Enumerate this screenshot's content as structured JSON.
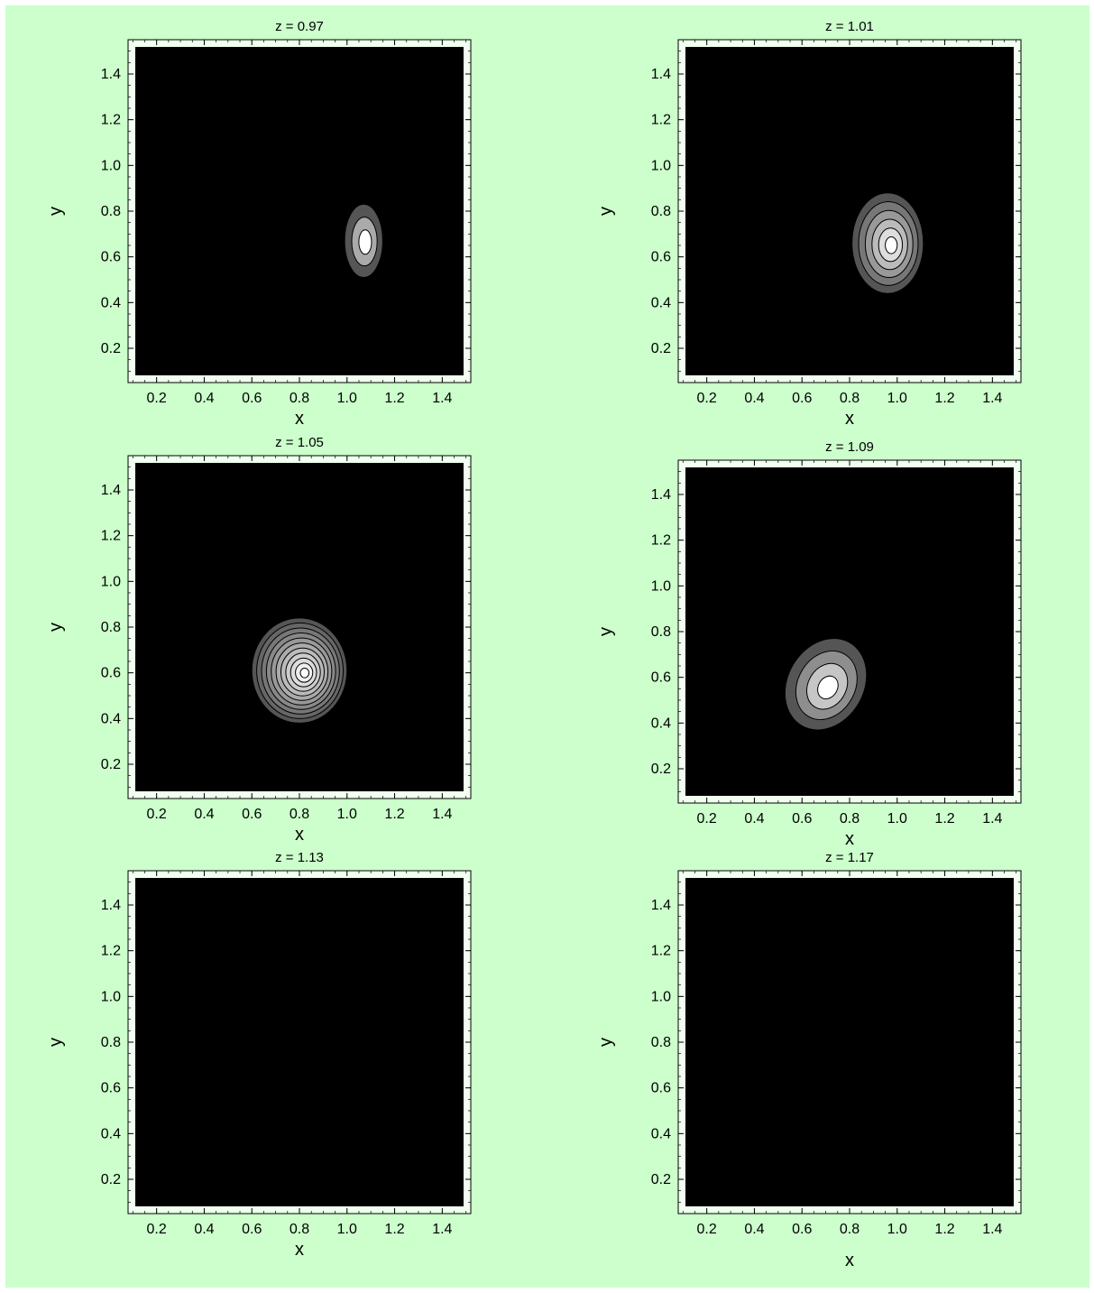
{
  "figure": {
    "background": "#ccffcc",
    "plot_background": "#000000",
    "frame_color": "#f0fff0"
  },
  "chart_data": [
    {
      "type": "heatmap",
      "subtype": "contour",
      "title": "z = 0.97",
      "xlabel": "x",
      "ylabel": "y",
      "xlim": [
        0.08,
        1.52
      ],
      "ylim": [
        0.05,
        1.55
      ],
      "xticks": [
        "0.2",
        "0.4",
        "0.6",
        "0.8",
        "1.0",
        "1.2",
        "1.4"
      ],
      "yticks": [
        "0.2",
        "0.4",
        "0.6",
        "0.8",
        "1.0",
        "1.2",
        "1.4"
      ],
      "blob": {
        "cx": 1.07,
        "cy": 0.67,
        "rx": 0.08,
        "ry": 0.16,
        "levels": 3,
        "tilt": 0
      }
    },
    {
      "type": "heatmap",
      "subtype": "contour",
      "title": "z = 1.01",
      "xlabel": "x",
      "ylabel": "y",
      "xlim": [
        0.08,
        1.52
      ],
      "ylim": [
        0.05,
        1.55
      ],
      "xticks": [
        "0.2",
        "0.4",
        "0.6",
        "0.8",
        "1.0",
        "1.2",
        "1.4"
      ],
      "yticks": [
        "0.2",
        "0.4",
        "0.6",
        "0.8",
        "1.0",
        "1.2",
        "1.4"
      ],
      "blob": {
        "cx": 0.96,
        "cy": 0.66,
        "rx": 0.15,
        "ry": 0.22,
        "levels": 6,
        "tilt": 0
      }
    },
    {
      "type": "heatmap",
      "subtype": "contour",
      "title": "z = 1.05",
      "xlabel": "x",
      "ylabel": "y",
      "xlim": [
        0.08,
        1.52
      ],
      "ylim": [
        0.05,
        1.55
      ],
      "xticks": [
        "0.2",
        "0.4",
        "0.6",
        "0.8",
        "1.0",
        "1.2",
        "1.4"
      ],
      "yticks": [
        "0.2",
        "0.4",
        "0.6",
        "0.8",
        "1.0",
        "1.2",
        "1.4"
      ],
      "blob": {
        "cx": 0.8,
        "cy": 0.61,
        "rx": 0.2,
        "ry": 0.23,
        "levels": 11,
        "tilt": 0
      }
    },
    {
      "type": "heatmap",
      "subtype": "contour",
      "title": "z = 1.09",
      "xlabel": "x",
      "ylabel": "y",
      "xlim": [
        0.08,
        1.52
      ],
      "ylim": [
        0.05,
        1.55
      ],
      "xticks": [
        "0.2",
        "0.4",
        "0.6",
        "0.8",
        "1.0",
        "1.2",
        "1.4"
      ],
      "yticks": [
        "0.2",
        "0.4",
        "0.6",
        "0.8",
        "1.0",
        "1.2",
        "1.4"
      ],
      "blob": {
        "cx": 0.7,
        "cy": 0.57,
        "rx": 0.16,
        "ry": 0.21,
        "levels": 4,
        "tilt": 30
      }
    },
    {
      "type": "heatmap",
      "subtype": "contour",
      "title": "z = 1.13",
      "xlabel": "x",
      "ylabel": "y",
      "xlim": [
        0.08,
        1.52
      ],
      "ylim": [
        0.05,
        1.55
      ],
      "xticks": [
        "0.2",
        "0.4",
        "0.6",
        "0.8",
        "1.0",
        "1.2",
        "1.4"
      ],
      "yticks": [
        "0.2",
        "0.4",
        "0.6",
        "0.8",
        "1.0",
        "1.2",
        "1.4"
      ],
      "blob": null
    },
    {
      "type": "heatmap",
      "subtype": "contour",
      "title": "z = 1.17",
      "xlabel": "x",
      "ylabel": "y",
      "xlim": [
        0.08,
        1.52
      ],
      "ylim": [
        0.05,
        1.55
      ],
      "xticks": [
        "0.2",
        "0.4",
        "0.6",
        "0.8",
        "1.0",
        "1.2",
        "1.4"
      ],
      "yticks": [
        "0.2",
        "0.4",
        "0.6",
        "0.8",
        "1.0",
        "1.2",
        "1.4"
      ],
      "blob": null
    }
  ]
}
